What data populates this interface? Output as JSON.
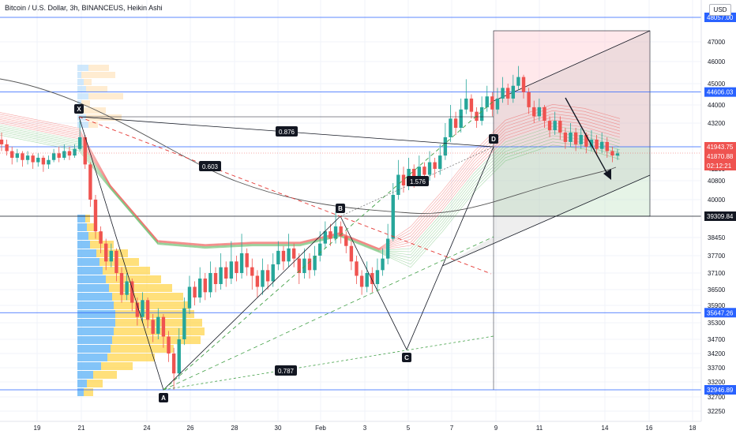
{
  "chart_title": "Bitcoin / U.S. Dollar, 3h, BINANCEUS, Heikin Ashi",
  "currency_button": "USD",
  "chart_data": {
    "type": "candlestick",
    "symbol": "Bitcoin / U.S. Dollar",
    "interval": "3h",
    "exchange": "BINANCEUS",
    "style": "Heikin Ashi",
    "y_axis": {
      "position": "right",
      "ticks": [
        47000,
        46000,
        45000,
        44000,
        43200,
        41200,
        40800,
        40000,
        38450,
        37700,
        37100,
        36500,
        35900,
        35300,
        34700,
        34200,
        33700,
        33200,
        32700,
        32250
      ]
    },
    "x_axis": {
      "ticks": [
        "19",
        "21",
        "24",
        "26",
        "28",
        "30",
        "Feb",
        "3",
        "5",
        "7",
        "9",
        "11",
        "14",
        "16",
        "18"
      ]
    },
    "horizontal_levels": [
      {
        "value": 48057.0,
        "label": "48057.00",
        "color": "#2962ff"
      },
      {
        "value": 44606.03,
        "label": "44606.03",
        "color": "#2962ff"
      },
      {
        "value": 42195.85,
        "label": "42195.85",
        "color": "#2962ff"
      },
      {
        "value": 39309.84,
        "label": "39309.84",
        "color": "#131722"
      },
      {
        "value": 35647.26,
        "label": "35647.26",
        "color": "#2962ff"
      },
      {
        "value": 32946.89,
        "label": "32946.89",
        "color": "#2962ff"
      }
    ],
    "price_labels": [
      {
        "label": "41943.75",
        "color": "#ef5350"
      },
      {
        "label": "41870.88",
        "color": "#ef5350"
      },
      {
        "label": "02:12:21",
        "color": "#ef5350"
      }
    ],
    "harmonic_pattern": {
      "points": [
        {
          "label": "X",
          "value": 43350
        },
        {
          "label": "A",
          "value": 32946.89
        },
        {
          "label": "B",
          "value": 39600
        },
        {
          "label": "C",
          "value": 34300
        },
        {
          "label": "D",
          "value": 42150
        }
      ],
      "ratios": [
        "0.876",
        "0.603",
        "0.787",
        "1.576"
      ]
    },
    "position_tool": {
      "entry": 42195.85,
      "target": 39309.84,
      "stop": 47000
    },
    "series_candles": [
      {
        "o": 42500,
        "c": 42300,
        "h": 42800,
        "l": 42000
      },
      {
        "o": 42300,
        "c": 42000,
        "h": 42500,
        "l": 41800
      },
      {
        "o": 42000,
        "c": 41700,
        "h": 42200,
        "l": 41400
      },
      {
        "o": 41700,
        "c": 41900,
        "h": 42100,
        "l": 41500
      },
      {
        "o": 41900,
        "c": 41600,
        "h": 42000,
        "l": 41300
      },
      {
        "o": 41600,
        "c": 41800,
        "h": 42000,
        "l": 41400
      },
      {
        "o": 41800,
        "c": 41500,
        "h": 41900,
        "l": 41200
      },
      {
        "o": 41500,
        "c": 41700,
        "h": 41900,
        "l": 41300
      },
      {
        "o": 41700,
        "c": 41400,
        "h": 41800,
        "l": 41100
      },
      {
        "o": 41400,
        "c": 41600,
        "h": 41800,
        "l": 41200
      },
      {
        "o": 41600,
        "c": 41900,
        "h": 42100,
        "l": 41500
      },
      {
        "o": 41900,
        "c": 41700,
        "h": 42200,
        "l": 41500
      },
      {
        "o": 41700,
        "c": 42000,
        "h": 42300,
        "l": 41600
      },
      {
        "o": 42000,
        "c": 41800,
        "h": 42200,
        "l": 41600
      },
      {
        "o": 41800,
        "c": 42100,
        "h": 42300,
        "l": 41700
      },
      {
        "o": 42100,
        "c": 42600,
        "h": 43300,
        "l": 42000
      },
      {
        "o": 42600,
        "c": 41400,
        "h": 42700,
        "l": 41200
      },
      {
        "o": 41400,
        "c": 40000,
        "h": 41500,
        "l": 39700
      },
      {
        "o": 40000,
        "c": 38700,
        "h": 40200,
        "l": 38400
      },
      {
        "o": 38700,
        "c": 38200,
        "h": 38900,
        "l": 37800
      },
      {
        "o": 38200,
        "c": 37500,
        "h": 38400,
        "l": 37200
      },
      {
        "o": 37500,
        "c": 37900,
        "h": 38200,
        "l": 37300
      },
      {
        "o": 37900,
        "c": 37100,
        "h": 38000,
        "l": 36800
      },
      {
        "o": 37100,
        "c": 36300,
        "h": 37300,
        "l": 36000
      },
      {
        "o": 36300,
        "c": 36800,
        "h": 37100,
        "l": 36100
      },
      {
        "o": 36800,
        "c": 36000,
        "h": 36900,
        "l": 35700
      },
      {
        "o": 36000,
        "c": 35500,
        "h": 36200,
        "l": 35200
      },
      {
        "o": 35500,
        "c": 36100,
        "h": 36400,
        "l": 35300
      },
      {
        "o": 36100,
        "c": 35400,
        "h": 36200,
        "l": 35100
      },
      {
        "o": 35400,
        "c": 34900,
        "h": 35600,
        "l": 34600
      },
      {
        "o": 34900,
        "c": 35500,
        "h": 35800,
        "l": 34700
      },
      {
        "o": 35500,
        "c": 34800,
        "h": 35600,
        "l": 34400
      },
      {
        "o": 34800,
        "c": 34200,
        "h": 35000,
        "l": 33900
      },
      {
        "o": 34200,
        "c": 33500,
        "h": 34400,
        "l": 32950
      },
      {
        "o": 33500,
        "c": 34700,
        "h": 35100,
        "l": 33300
      },
      {
        "o": 34700,
        "c": 35800,
        "h": 36200,
        "l": 34500
      },
      {
        "o": 35800,
        "c": 36600,
        "h": 37000,
        "l": 35600
      },
      {
        "o": 36600,
        "c": 36200,
        "h": 36800,
        "l": 35900
      },
      {
        "o": 36200,
        "c": 36900,
        "h": 37300,
        "l": 36000
      },
      {
        "o": 36900,
        "c": 36400,
        "h": 37100,
        "l": 36100
      },
      {
        "o": 36400,
        "c": 37100,
        "h": 37500,
        "l": 36200
      },
      {
        "o": 37100,
        "c": 36700,
        "h": 37300,
        "l": 36400
      },
      {
        "o": 36700,
        "c": 37300,
        "h": 37800,
        "l": 36500
      },
      {
        "o": 37300,
        "c": 36900,
        "h": 37500,
        "l": 36600
      },
      {
        "o": 36900,
        "c": 37500,
        "h": 38300,
        "l": 36700
      },
      {
        "o": 37500,
        "c": 37100,
        "h": 37700,
        "l": 36800
      },
      {
        "o": 37100,
        "c": 37800,
        "h": 38600,
        "l": 36900
      },
      {
        "o": 37800,
        "c": 37300,
        "h": 38000,
        "l": 37000
      },
      {
        "o": 37300,
        "c": 37000,
        "h": 37600,
        "l": 36500
      },
      {
        "o": 37000,
        "c": 36600,
        "h": 37200,
        "l": 36200
      },
      {
        "o": 36600,
        "c": 37200,
        "h": 37600,
        "l": 36300
      },
      {
        "o": 37200,
        "c": 36800,
        "h": 37400,
        "l": 36500
      },
      {
        "o": 36800,
        "c": 37400,
        "h": 37800,
        "l": 36600
      },
      {
        "o": 37400,
        "c": 37900,
        "h": 38300,
        "l": 37200
      },
      {
        "o": 37900,
        "c": 37500,
        "h": 38100,
        "l": 37200
      },
      {
        "o": 37500,
        "c": 38000,
        "h": 38600,
        "l": 37300
      },
      {
        "o": 38000,
        "c": 37600,
        "h": 38200,
        "l": 37300
      },
      {
        "o": 37600,
        "c": 37100,
        "h": 37800,
        "l": 36700
      },
      {
        "o": 37100,
        "c": 37600,
        "h": 38000,
        "l": 36900
      },
      {
        "o": 37600,
        "c": 37200,
        "h": 37800,
        "l": 36900
      },
      {
        "o": 37200,
        "c": 37700,
        "h": 38100,
        "l": 37000
      },
      {
        "o": 37700,
        "c": 38200,
        "h": 38700,
        "l": 37500
      },
      {
        "o": 38200,
        "c": 38700,
        "h": 39100,
        "l": 38000
      },
      {
        "o": 38700,
        "c": 38400,
        "h": 39000,
        "l": 38100
      },
      {
        "o": 38400,
        "c": 38900,
        "h": 39500,
        "l": 38200
      },
      {
        "o": 38900,
        "c": 38500,
        "h": 39100,
        "l": 38200
      },
      {
        "o": 38500,
        "c": 38100,
        "h": 38700,
        "l": 37800
      },
      {
        "o": 38100,
        "c": 37500,
        "h": 38300,
        "l": 37200
      },
      {
        "o": 37500,
        "c": 37000,
        "h": 37700,
        "l": 36700
      },
      {
        "o": 37000,
        "c": 36600,
        "h": 37200,
        "l": 36300
      },
      {
        "o": 36600,
        "c": 37100,
        "h": 37500,
        "l": 36400
      },
      {
        "o": 37100,
        "c": 36700,
        "h": 37300,
        "l": 36400
      },
      {
        "o": 36700,
        "c": 37200,
        "h": 37600,
        "l": 36500
      },
      {
        "o": 37200,
        "c": 37600,
        "h": 38000,
        "l": 37000
      },
      {
        "o": 37600,
        "c": 38400,
        "h": 39000,
        "l": 37400
      },
      {
        "o": 38400,
        "c": 40200,
        "h": 40700,
        "l": 38300
      },
      {
        "o": 40200,
        "c": 41000,
        "h": 41600,
        "l": 40000
      },
      {
        "o": 41000,
        "c": 40600,
        "h": 41300,
        "l": 40300
      },
      {
        "o": 40600,
        "c": 41200,
        "h": 41700,
        "l": 40400
      },
      {
        "o": 41200,
        "c": 40800,
        "h": 41400,
        "l": 40500
      },
      {
        "o": 40800,
        "c": 41300,
        "h": 41800,
        "l": 40600
      },
      {
        "o": 41300,
        "c": 41000,
        "h": 41500,
        "l": 40700
      },
      {
        "o": 41000,
        "c": 41500,
        "h": 42000,
        "l": 40800
      },
      {
        "o": 41500,
        "c": 41200,
        "h": 41700,
        "l": 40900
      },
      {
        "o": 41200,
        "c": 41800,
        "h": 42300,
        "l": 41000
      },
      {
        "o": 41800,
        "c": 42600,
        "h": 43200,
        "l": 41600
      },
      {
        "o": 42600,
        "c": 43400,
        "h": 44000,
        "l": 42400
      },
      {
        "o": 43400,
        "c": 43000,
        "h": 43700,
        "l": 42700
      },
      {
        "o": 43000,
        "c": 43800,
        "h": 44300,
        "l": 42800
      },
      {
        "o": 43800,
        "c": 44300,
        "h": 45200,
        "l": 43600
      },
      {
        "o": 44300,
        "c": 43700,
        "h": 44500,
        "l": 43400
      },
      {
        "o": 43700,
        "c": 43300,
        "h": 43900,
        "l": 43000
      },
      {
        "o": 43300,
        "c": 43900,
        "h": 44400,
        "l": 43100
      },
      {
        "o": 43900,
        "c": 44400,
        "h": 44900,
        "l": 43700
      },
      {
        "o": 44400,
        "c": 43800,
        "h": 44600,
        "l": 43500
      },
      {
        "o": 43800,
        "c": 44300,
        "h": 44800,
        "l": 43600
      },
      {
        "o": 44300,
        "c": 44800,
        "h": 45300,
        "l": 44100
      },
      {
        "o": 44800,
        "c": 44300,
        "h": 45000,
        "l": 44000
      },
      {
        "o": 44300,
        "c": 44900,
        "h": 45400,
        "l": 44100
      },
      {
        "o": 44900,
        "c": 45300,
        "h": 45800,
        "l": 44700
      },
      {
        "o": 45300,
        "c": 44600,
        "h": 45400,
        "l": 44300
      },
      {
        "o": 44600,
        "c": 43900,
        "h": 44800,
        "l": 43600
      },
      {
        "o": 43900,
        "c": 43500,
        "h": 44200,
        "l": 43200
      },
      {
        "o": 43500,
        "c": 43900,
        "h": 44300,
        "l": 43300
      },
      {
        "o": 43900,
        "c": 43300,
        "h": 44000,
        "l": 43000
      },
      {
        "o": 43300,
        "c": 42900,
        "h": 43500,
        "l": 42600
      },
      {
        "o": 42900,
        "c": 43300,
        "h": 43700,
        "l": 42700
      },
      {
        "o": 43300,
        "c": 42800,
        "h": 43500,
        "l": 42500
      },
      {
        "o": 42800,
        "c": 42400,
        "h": 43000,
        "l": 42100
      },
      {
        "o": 42400,
        "c": 42800,
        "h": 43200,
        "l": 42200
      },
      {
        "o": 42800,
        "c": 42300,
        "h": 43000,
        "l": 42000
      },
      {
        "o": 42300,
        "c": 42700,
        "h": 43000,
        "l": 42100
      },
      {
        "o": 42700,
        "c": 42200,
        "h": 42800,
        "l": 41900
      },
      {
        "o": 42200,
        "c": 42500,
        "h": 42900,
        "l": 42000
      },
      {
        "o": 42500,
        "c": 42100,
        "h": 42700,
        "l": 41800
      },
      {
        "o": 42100,
        "c": 42400,
        "h": 42800,
        "l": 41900
      },
      {
        "o": 42400,
        "c": 42000,
        "h": 42600,
        "l": 41700
      },
      {
        "o": 42000,
        "c": 41800,
        "h": 42200,
        "l": 41500
      },
      {
        "o": 41800,
        "c": 41900,
        "h": 42100,
        "l": 41600
      }
    ]
  }
}
